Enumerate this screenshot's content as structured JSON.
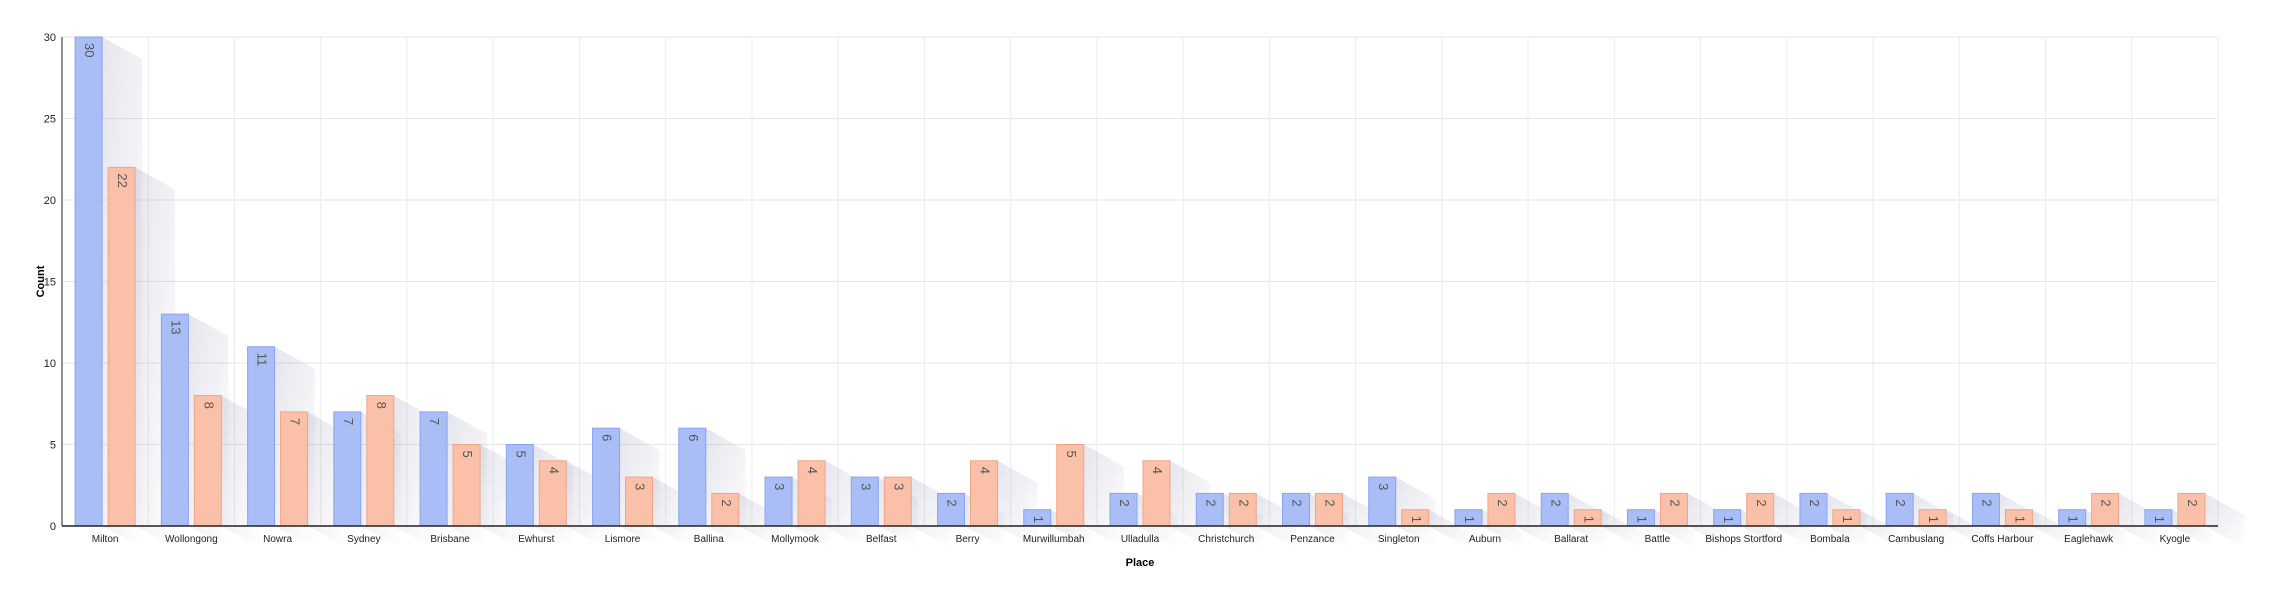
{
  "chart_data": {
    "type": "bar",
    "title": "",
    "xlabel": "Place",
    "ylabel": "Count",
    "ylim": [
      0,
      30
    ],
    "yticks": [
      0,
      5,
      10,
      15,
      20,
      25,
      30
    ],
    "grid": true,
    "legend": "none",
    "categories": [
      "Milton",
      "Wollongong",
      "Nowra",
      "Sydney",
      "Brisbane",
      "Ewhurst",
      "Lismore",
      "Ballina",
      "Mollymook",
      "Belfast",
      "Berry",
      "Murwillumbah",
      "Ulladulla",
      "Christchurch",
      "Penzance",
      "Singleton",
      "Auburn",
      "Ballarat",
      "Battle",
      "Bishops Stortford",
      "Bombala",
      "Cambuslang",
      "Coffs Harbour",
      "Eaglehawk",
      "Kyogle"
    ],
    "series": [
      {
        "values": [
          30,
          13,
          11,
          7,
          7,
          5,
          6,
          6,
          3,
          3,
          2,
          1,
          2,
          2,
          2,
          3,
          1,
          2,
          1,
          1,
          2,
          2,
          2,
          1,
          1
        ]
      },
      {
        "values": [
          22,
          8,
          7,
          8,
          5,
          4,
          3,
          2,
          4,
          3,
          4,
          5,
          4,
          2,
          2,
          1,
          2,
          1,
          2,
          2,
          1,
          1,
          1,
          2,
          2
        ]
      }
    ],
    "colors": {
      "series": [
        "#a9bdf7",
        "#fbc1a8"
      ],
      "series_stroke": [
        "#8aa3ef",
        "#f0a486"
      ]
    }
  }
}
